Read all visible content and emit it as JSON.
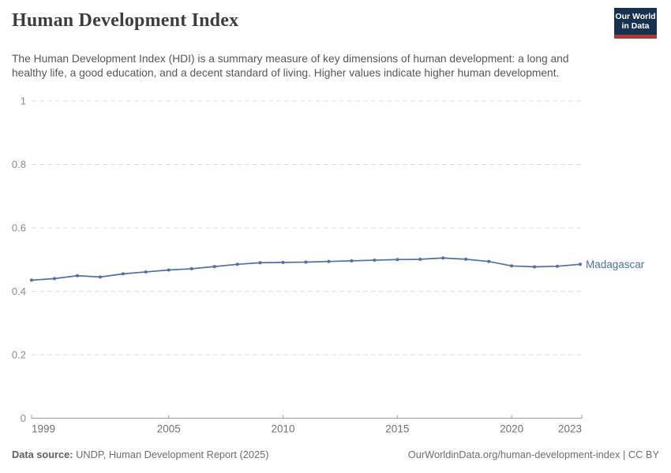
{
  "header": {
    "title": "Human Development Index",
    "subtitle": "The Human Development Index (HDI) is a summary measure of key dimensions of human development: a long and healthy life, a good education, and a decent standard of living. Higher values indicate higher human development.",
    "logo": {
      "line1": "Our World",
      "line2": "in Data",
      "bg_color": "#16324f",
      "bar_color": "#af3831"
    }
  },
  "chart_data": {
    "type": "line",
    "title": "Human Development Index",
    "xlabel": "",
    "ylabel": "",
    "xlim": [
      1999,
      2023
    ],
    "ylim": [
      0,
      1
    ],
    "grid": "horizontal-dashed",
    "legend_position": "end-of-line",
    "x": [
      1999,
      2000,
      2001,
      2002,
      2003,
      2004,
      2005,
      2006,
      2007,
      2008,
      2009,
      2010,
      2011,
      2012,
      2013,
      2014,
      2015,
      2016,
      2017,
      2018,
      2019,
      2020,
      2021,
      2022,
      2023
    ],
    "series": [
      {
        "name": "Madagascar",
        "color": "#4d6fa5",
        "values": [
          0.435,
          0.44,
          0.449,
          0.445,
          0.455,
          0.461,
          0.467,
          0.471,
          0.478,
          0.485,
          0.49,
          0.491,
          0.492,
          0.494,
          0.496,
          0.498,
          0.5,
          0.501,
          0.505,
          0.501,
          0.494,
          0.48,
          0.477,
          0.479,
          0.485
        ]
      }
    ],
    "x_ticks": [
      1999,
      2005,
      2010,
      2015,
      2020,
      2023
    ],
    "y_ticks": [
      "0",
      "0.2",
      "0.4",
      "0.6",
      "0.8",
      "1"
    ]
  },
  "footer": {
    "source_label": "Data source:",
    "source_text": "UNDP, Human Development Report (2025)",
    "link_text": "OurWorldinData.org/human-development-index",
    "separator": "|",
    "license_text": "CC BY"
  }
}
